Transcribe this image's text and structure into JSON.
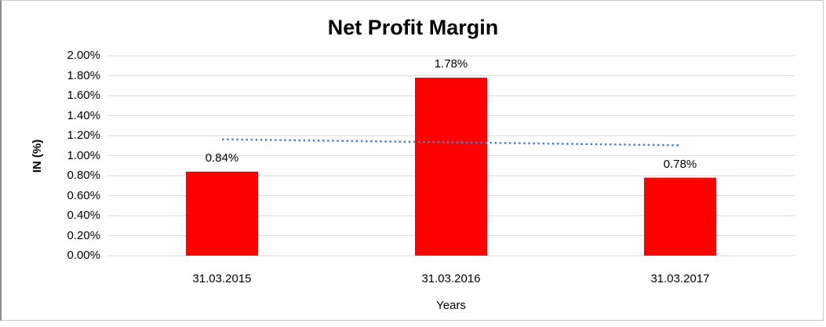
{
  "chart_data": {
    "type": "bar",
    "title": "Net Profit Margin",
    "xlabel": "Years",
    "ylabel": "IN (%)",
    "categories": [
      "31.03.2015",
      "31.03.2016",
      "31.03.2017"
    ],
    "values": [
      0.84,
      1.78,
      0.78
    ],
    "value_labels": [
      "0.84%",
      "1.78%",
      "0.78%"
    ],
    "ylim": [
      0,
      2.0
    ],
    "ytick_step": 0.2,
    "ytick_labels": [
      "0.00%",
      "0.20%",
      "0.40%",
      "0.60%",
      "0.80%",
      "1.00%",
      "1.20%",
      "1.40%",
      "1.60%",
      "1.80%",
      "2.00%"
    ],
    "grid": true,
    "legend": "none",
    "bar_color": "#ff0000",
    "gridline_color": "#d9d9d9",
    "trendline": {
      "type": "linear",
      "style": "dotted",
      "color": "#4f81bd"
    }
  }
}
